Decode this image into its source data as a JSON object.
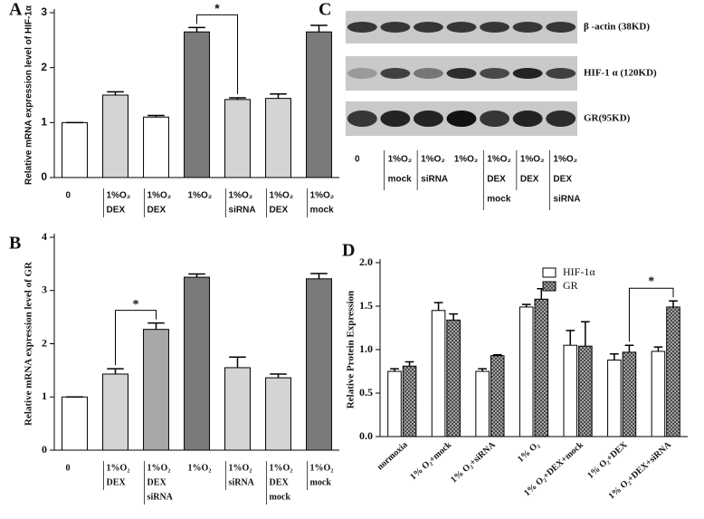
{
  "chart_data": [
    {
      "type": "bar",
      "panel": "A",
      "ylabel": "Relative mRNA expression level of HIF-1α",
      "categories": [
        [
          "0"
        ],
        [
          "1%O₂",
          "DEX"
        ],
        [
          "1%O₂",
          "DEX"
        ],
        [
          "1%O₂"
        ],
        [
          "1%O₂",
          "siRNA"
        ],
        [
          "1%O₂",
          "DEX"
        ],
        [
          "1%O₂",
          "mock"
        ]
      ],
      "values": [
        1.0,
        1.5,
        1.1,
        2.65,
        1.42,
        1.44,
        2.65
      ],
      "errors": [
        0,
        0.06,
        0.03,
        0.08,
        0.03,
        0.08,
        0.12
      ],
      "colors": [
        "#ffffff",
        "#d4d4d4",
        "#ffffff",
        "#7a7a7a",
        "#d4d4d4",
        "#d4d4d4",
        "#7a7a7a"
      ],
      "ylim": [
        0,
        3
      ],
      "yticks": [
        0,
        1,
        2,
        3
      ],
      "annotations": [
        "*"
      ]
    },
    {
      "type": "bar",
      "panel": "B",
      "ylabel": "Relative mRNA expression level of GR",
      "categories": [
        [
          "0"
        ],
        [
          "1%O₂",
          "DEX"
        ],
        [
          "1%O₂",
          "DEX",
          "siRNA"
        ],
        [
          "1%O₂"
        ],
        [
          "1%O₂",
          "siRNA"
        ],
        [
          "1%O₂",
          "DEX",
          "mock"
        ],
        [
          "1%O₂",
          "mock"
        ]
      ],
      "values": [
        1.0,
        1.43,
        2.27,
        3.25,
        1.55,
        1.36,
        3.22
      ],
      "errors": [
        0,
        0.1,
        0.12,
        0.06,
        0.2,
        0.07,
        0.1
      ],
      "colors": [
        "#ffffff",
        "#d4d4d4",
        "#a8a8a8",
        "#7a7a7a",
        "#d4d4d4",
        "#d4d4d4",
        "#7a7a7a"
      ],
      "ylim": [
        0,
        4
      ],
      "yticks": [
        0,
        1,
        2,
        3,
        4
      ],
      "annotations": [
        "*"
      ]
    },
    {
      "type": "grouped_bar",
      "panel": "D",
      "ylabel": "Relative Protein Expression",
      "categories": [
        "normoxia",
        "1% O₂+mock",
        "1% O₂+siRNA",
        "1% O₂",
        "1% O₂+DEX+mock",
        "1% O₂+DEX",
        "1% O₂+DEX+siRNA"
      ],
      "series": [
        {
          "name": "HIF-1α",
          "color": "#ffffff",
          "values": [
            0.75,
            1.45,
            0.75,
            1.49,
            1.05,
            0.88,
            0.98
          ],
          "errors": [
            0.03,
            0.09,
            0.03,
            0.03,
            0.17,
            0.07,
            0.05
          ]
        },
        {
          "name": "GR",
          "color": "#999999",
          "hatch": true,
          "values": [
            0.81,
            1.34,
            0.93,
            1.58,
            1.04,
            0.97,
            1.49
          ],
          "errors": [
            0.05,
            0.07,
            0.01,
            0.12,
            0.28,
            0.08,
            0.07
          ]
        }
      ],
      "ylim": [
        0,
        2.0
      ],
      "yticks": [
        {
          "value": 0,
          "label": "0.0"
        },
        {
          "value": 0.5,
          "label": "0.5"
        },
        {
          "value": 1.0,
          "label": "1.0"
        },
        {
          "value": 1.5,
          "label": "1.5"
        },
        {
          "value": 2.0,
          "label": "2.0"
        }
      ],
      "legend": "top",
      "annotations": [
        "*"
      ]
    }
  ],
  "blot": {
    "panel": "C",
    "bands": [
      "β -actin (38KD)",
      "HIF-1 α (120KD)",
      "GR(95KD)"
    ],
    "lanes": [
      [
        "0"
      ],
      [
        "1%O₂",
        "mock"
      ],
      [
        "1%O₂",
        "siRNA"
      ],
      [
        "1%O₂"
      ],
      [
        "1%O₂",
        "DEX",
        "mock"
      ],
      [
        "1%O₂",
        "DEX"
      ],
      [
        "1%O₂",
        "DEX",
        "siRNA"
      ]
    ]
  }
}
